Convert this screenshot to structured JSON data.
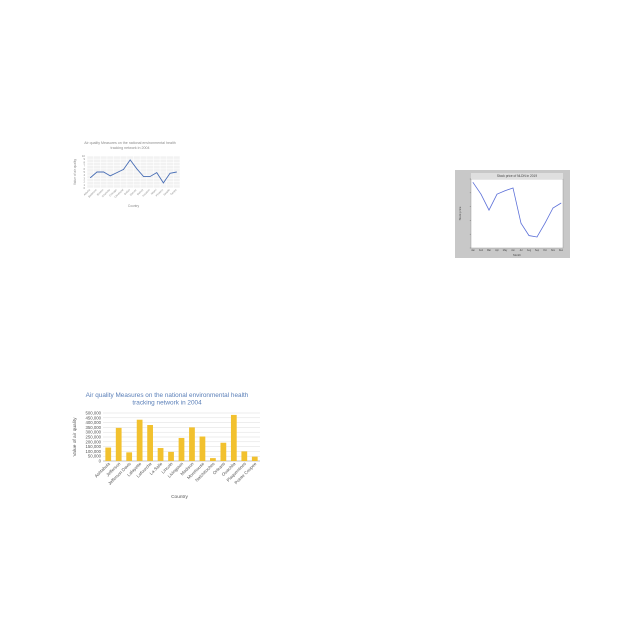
{
  "chart_data": [
    {
      "type": "line",
      "title": "Air quality Measures on the national environmental health tracking network in 2004",
      "xlabel": "Country",
      "ylabel": "Value of air quality",
      "categories": [
        "Atlanta",
        "Baltimore",
        "Boston",
        "Charlotte",
        "Chicago",
        "Cleveland",
        "Dallas",
        "Denver",
        "Detroit",
        "Houston",
        "Miami",
        "Phoenix",
        "Seattle",
        "Tampa"
      ],
      "values": [
        3.2,
        5.0,
        5.0,
        3.8,
        4.8,
        5.8,
        8.8,
        6.0,
        3.6,
        3.6,
        4.8,
        1.6,
        4.6,
        5.0
      ],
      "ylim": [
        0,
        10
      ],
      "yticks": [
        "0",
        "1",
        "2",
        "3",
        "4",
        "5",
        "6",
        "7",
        "8",
        "9",
        "10"
      ],
      "grid": true,
      "colors": {
        "line": "#4a6fb5",
        "plot_bg": "#f2f2f2",
        "grid": "#ffffff",
        "text": "#8a8a8a"
      }
    },
    {
      "type": "line",
      "title": "Stock price of NLDN in 2019",
      "xlabel": "Month",
      "ylabel": "Stock price",
      "categories": [
        "Jan",
        "Feb",
        "Mar",
        "Apr",
        "May",
        "Jun",
        "Jul",
        "Aug",
        "Sep",
        "Oct",
        "Nov",
        "Dec"
      ],
      "values": [
        0.95,
        0.78,
        0.55,
        0.78,
        0.83,
        0.87,
        0.36,
        0.18,
        0.16,
        0.36,
        0.58,
        0.65
      ],
      "ylim": [
        0,
        1
      ],
      "yticks": [
        "",
        "",
        "",
        "",
        "",
        ""
      ],
      "grid": false,
      "colors": {
        "line": "#5b6fd8",
        "figure_bg": "#c8c8c8",
        "plot_bg": "#ffffff",
        "title_bg": "#dfdfdf",
        "text": "#444444"
      }
    },
    {
      "type": "bar",
      "title": "Air quality Measures on the national environmental health tracking network in 2004",
      "xlabel": "Country",
      "ylabel": "Value of air quality",
      "categories": [
        "Ashtabula",
        "Jefferson",
        "Jefferson Davis",
        "Lafayette",
        "Lafourche",
        "La Salle",
        "Lincoln",
        "Livingston",
        "Madison",
        "Morehouse",
        "Natchitoches",
        "Orleans",
        "Ouachita",
        "Plaquemines",
        "Pointe Coupee"
      ],
      "values": [
        140000,
        345000,
        90000,
        430000,
        375000,
        135000,
        95000,
        240000,
        350000,
        255000,
        30000,
        190000,
        480000,
        100000,
        45000
      ],
      "ylim": [
        0,
        500000
      ],
      "yticks": [
        "0",
        "50,000",
        "100,000",
        "150,000",
        "200,000",
        "250,000",
        "300,000",
        "350,000",
        "400,000",
        "450,000",
        "500,000"
      ],
      "grid": true,
      "colors": {
        "bar": "#f2c12e",
        "grid": "#dddddd",
        "title": "#5a7fb8",
        "text": "#555555"
      }
    }
  ]
}
